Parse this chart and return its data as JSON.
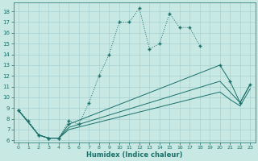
{
  "xlabel": "Humidex (Indice chaleur)",
  "xlim": [
    -0.5,
    23.5
  ],
  "ylim": [
    5.8,
    18.8
  ],
  "xticks": [
    0,
    1,
    2,
    3,
    4,
    5,
    6,
    7,
    8,
    9,
    10,
    11,
    12,
    13,
    14,
    15,
    16,
    17,
    18,
    19,
    20,
    21,
    22,
    23
  ],
  "yticks": [
    6,
    7,
    8,
    9,
    10,
    11,
    12,
    13,
    14,
    15,
    16,
    17,
    18
  ],
  "bg_color": "#c8e8e4",
  "grid_color": "#a0cccc",
  "line_color": "#1a7068",
  "line1_x": [
    0,
    1,
    2,
    3,
    4,
    5,
    6,
    7,
    8,
    9,
    10,
    11,
    12,
    13,
    14,
    15,
    16,
    17,
    18
  ],
  "line1_y": [
    8.8,
    7.8,
    6.5,
    6.2,
    6.2,
    7.8,
    7.5,
    9.5,
    12.0,
    14.0,
    17.0,
    17.0,
    18.3,
    14.5,
    15.0,
    17.8,
    16.5,
    16.5,
    14.8
  ],
  "line2_x": [
    0,
    2,
    3,
    4,
    5,
    20,
    21,
    22,
    23
  ],
  "line2_y": [
    8.8,
    6.5,
    6.2,
    6.2,
    7.5,
    13.0,
    11.5,
    9.5,
    11.2
  ],
  "line3_x": [
    0,
    2,
    3,
    4,
    5,
    20,
    21,
    22,
    23
  ],
  "line3_y": [
    8.8,
    6.5,
    6.2,
    6.2,
    7.2,
    11.5,
    10.5,
    9.5,
    11.2
  ],
  "line4_x": [
    0,
    2,
    3,
    4,
    5,
    20,
    21,
    22,
    23
  ],
  "line4_y": [
    8.8,
    6.5,
    6.2,
    6.2,
    7.0,
    10.5,
    9.8,
    9.2,
    10.8
  ]
}
